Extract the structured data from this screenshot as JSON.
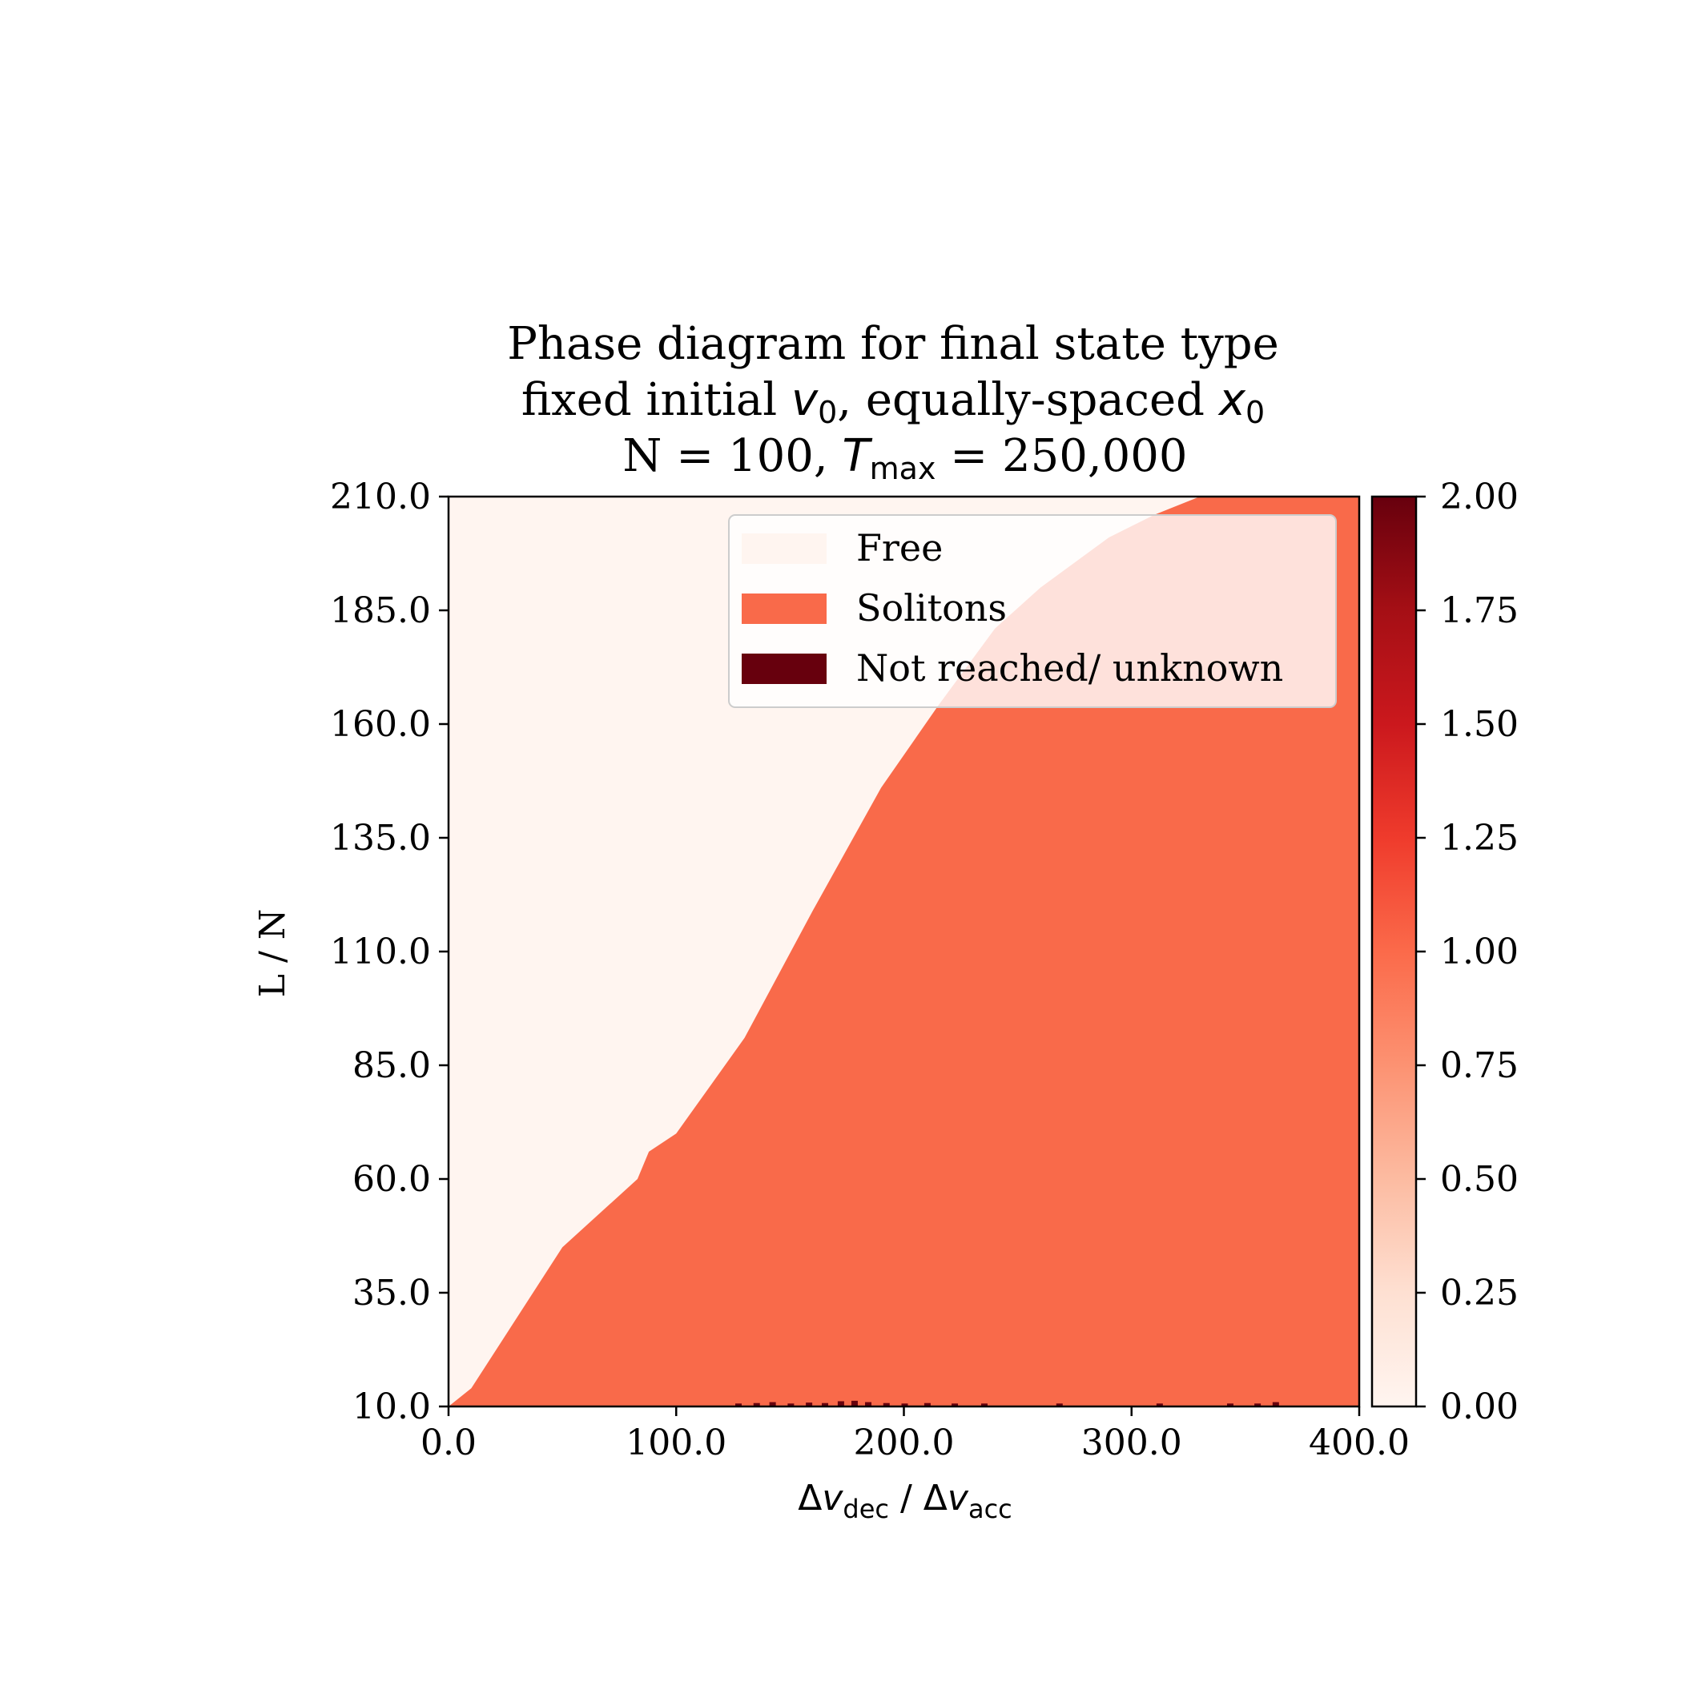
{
  "chart_data": {
    "type": "heatmap",
    "title": {
      "line1": "Phase diagram for final state type",
      "line2_prefix": "fixed initial ",
      "line2_v": "v",
      "line2_v_sub": "0",
      "line2_middle": ", equally-spaced ",
      "line2_x": "x",
      "line2_x_sub": "0",
      "line3_prefix": "N = 100, ",
      "line3_T": "T",
      "line3_T_sub": "max",
      "line3_suffix": " = 250,000"
    },
    "xlabel": {
      "delta1": "Δ",
      "v1": "v",
      "sub1": "dec",
      "sep": " / ",
      "delta2": "Δ",
      "v2": "v",
      "sub2": "acc"
    },
    "ylabel": "L / N",
    "xlim": [
      0,
      400
    ],
    "ylim": [
      10,
      210
    ],
    "x_ticks": [
      0,
      100,
      200,
      300,
      400
    ],
    "x_tick_labels": [
      "0.0",
      "100.0",
      "200.0",
      "300.0",
      "400.0"
    ],
    "y_ticks": [
      10,
      35,
      60,
      85,
      110,
      135,
      160,
      185,
      210
    ],
    "y_tick_labels": [
      "10.0",
      "35.0",
      "60.0",
      "85.0",
      "110.0",
      "135.0",
      "160.0",
      "185.0",
      "210.0"
    ],
    "colorbar": {
      "min": 0,
      "max": 2,
      "ticks": [
        0,
        0.25,
        0.5,
        0.75,
        1,
        1.25,
        1.5,
        1.75,
        2
      ],
      "tick_labels": [
        "0.00",
        "0.25",
        "0.50",
        "0.75",
        "1.00",
        "1.25",
        "1.50",
        "1.75",
        "2.00"
      ],
      "colormap": "Reds",
      "stops": [
        "#fff5f0",
        "#fee0d2",
        "#fcbba1",
        "#fc9272",
        "#fb6a4a",
        "#ef3b2c",
        "#cb181d",
        "#a50f15",
        "#67000d"
      ]
    },
    "categories": [
      {
        "label": "Free",
        "value": 0,
        "color": "#fff5f0"
      },
      {
        "label": "Solitons",
        "value": 1,
        "color": "#f96a4a"
      },
      {
        "label": "Not reached/ unknown",
        "value": 2,
        "color": "#67000d"
      }
    ],
    "legend_position": "top-right",
    "boundary": {
      "description_x": [
        0,
        10,
        50,
        83,
        88,
        100,
        130,
        160,
        190,
        215,
        240,
        260,
        290,
        310,
        330
      ],
      "description_y": [
        10,
        14,
        45,
        60,
        66,
        70,
        91,
        119,
        146,
        164,
        181,
        190,
        201,
        206,
        210
      ]
    },
    "unknown_points": [
      {
        "x": 127,
        "y": 10.3
      },
      {
        "x": 135,
        "y": 10.4
      },
      {
        "x": 142,
        "y": 10.6
      },
      {
        "x": 150,
        "y": 10.3
      },
      {
        "x": 158,
        "y": 10.5
      },
      {
        "x": 165,
        "y": 10.4
      },
      {
        "x": 172,
        "y": 10.8
      },
      {
        "x": 178,
        "y": 10.9
      },
      {
        "x": 184,
        "y": 10.6
      },
      {
        "x": 192,
        "y": 10.4
      },
      {
        "x": 200,
        "y": 10.3
      },
      {
        "x": 210,
        "y": 10.4
      },
      {
        "x": 222,
        "y": 10.3
      },
      {
        "x": 235,
        "y": 10.3
      },
      {
        "x": 268,
        "y": 10.3
      },
      {
        "x": 312,
        "y": 10.3
      },
      {
        "x": 343,
        "y": 10.3
      },
      {
        "x": 355,
        "y": 10.3
      },
      {
        "x": 363,
        "y": 10.6
      }
    ]
  }
}
